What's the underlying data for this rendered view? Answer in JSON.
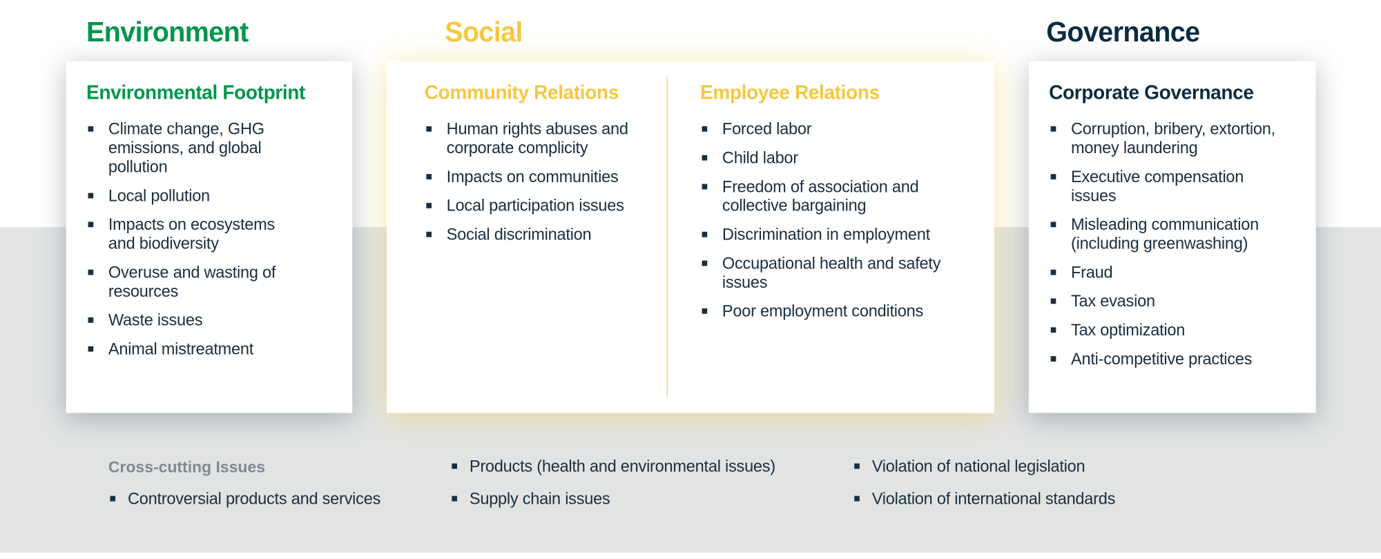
{
  "colors": {
    "environment": "#00964b",
    "social": "#f5c842",
    "governance": "#0d2b40",
    "text": "#1a2e3f",
    "band": "#e2e4e4",
    "muted": "#7d8a92"
  },
  "pillars": {
    "environment": "Environment",
    "social": "Social",
    "governance": "Governance"
  },
  "environment": {
    "title": "Environmental Footprint",
    "items": [
      "Climate change, GHG emissions, and global pollution",
      "Local pollution",
      "Impacts on ecosystems and biodiversity",
      "Overuse and wasting of resources",
      "Waste issues",
      "Animal mistreatment"
    ]
  },
  "community": {
    "title": "Community Relations",
    "items": [
      "Human rights abuses and corporate complicity",
      "Impacts on communities",
      "Local participation issues",
      "Social discrimination"
    ]
  },
  "employee": {
    "title": "Employee Relations",
    "items": [
      "Forced labor",
      "Child labor",
      "Freedom of association and collective bargaining",
      "Discrimination in employment",
      "Occupational health and safety issues",
      "Poor employment conditions"
    ]
  },
  "governance": {
    "title": "Corporate Governance",
    "items": [
      "Corruption, bribery, extortion, money laundering",
      "Executive compensation issues",
      "Misleading communication (including greenwashing)",
      "Fraud",
      "Tax evasion",
      "Tax optimization",
      "Anti-competitive practices"
    ]
  },
  "crosscutting": {
    "label": "Cross-cutting Issues",
    "col1": [
      "Controversial products and services"
    ],
    "col2": [
      "Products (health and environmental issues)",
      "Supply chain issues"
    ],
    "col3": [
      "Violation of national legislation",
      "Violation of international standards"
    ]
  }
}
